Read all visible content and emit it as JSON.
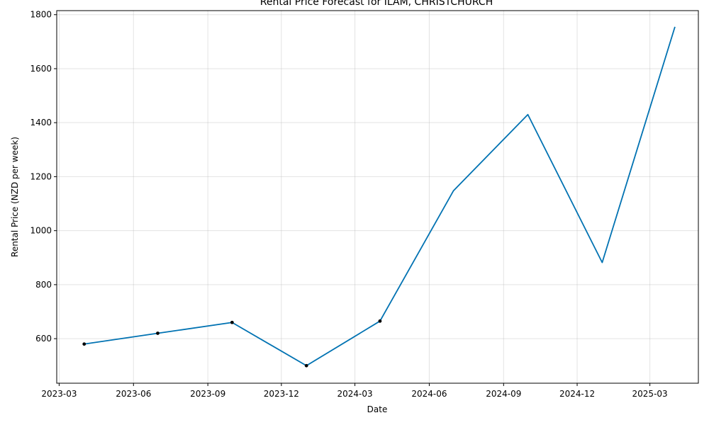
{
  "chart_data": {
    "type": "line",
    "title": "Rental Price Forecast for ILAM, CHRISTCHURCH",
    "xlabel": "Date",
    "ylabel": "Rental Price (NZD per week)",
    "x_ticks": [
      "2023-03",
      "2023-06",
      "2023-09",
      "2023-12",
      "2024-03",
      "2024-06",
      "2024-09",
      "2024-12",
      "2025-03"
    ],
    "y_ticks": [
      600,
      800,
      1000,
      1200,
      1400,
      1600,
      1800
    ],
    "xlim": [
      "2023-02-26",
      "2025-04-30"
    ],
    "ylim": [
      435,
      1815
    ],
    "grid": true,
    "series": [
      {
        "color": "#0072B2",
        "x": [
          "2023-04-01",
          "2023-07-01",
          "2023-10-01",
          "2024-01-01",
          "2024-04-01",
          "2024-07-01",
          "2024-10-01",
          "2025-01-01",
          "2025-04-01"
        ],
        "y": [
          580,
          620,
          660,
          500,
          665,
          1148,
          1430,
          882,
          1755
        ]
      }
    ],
    "observed_points": {
      "color": "#000000",
      "x": [
        "2023-04-01",
        "2023-07-01",
        "2023-10-01",
        "2024-01-01",
        "2024-04-01"
      ],
      "y": [
        580,
        620,
        660,
        500,
        665
      ]
    }
  }
}
